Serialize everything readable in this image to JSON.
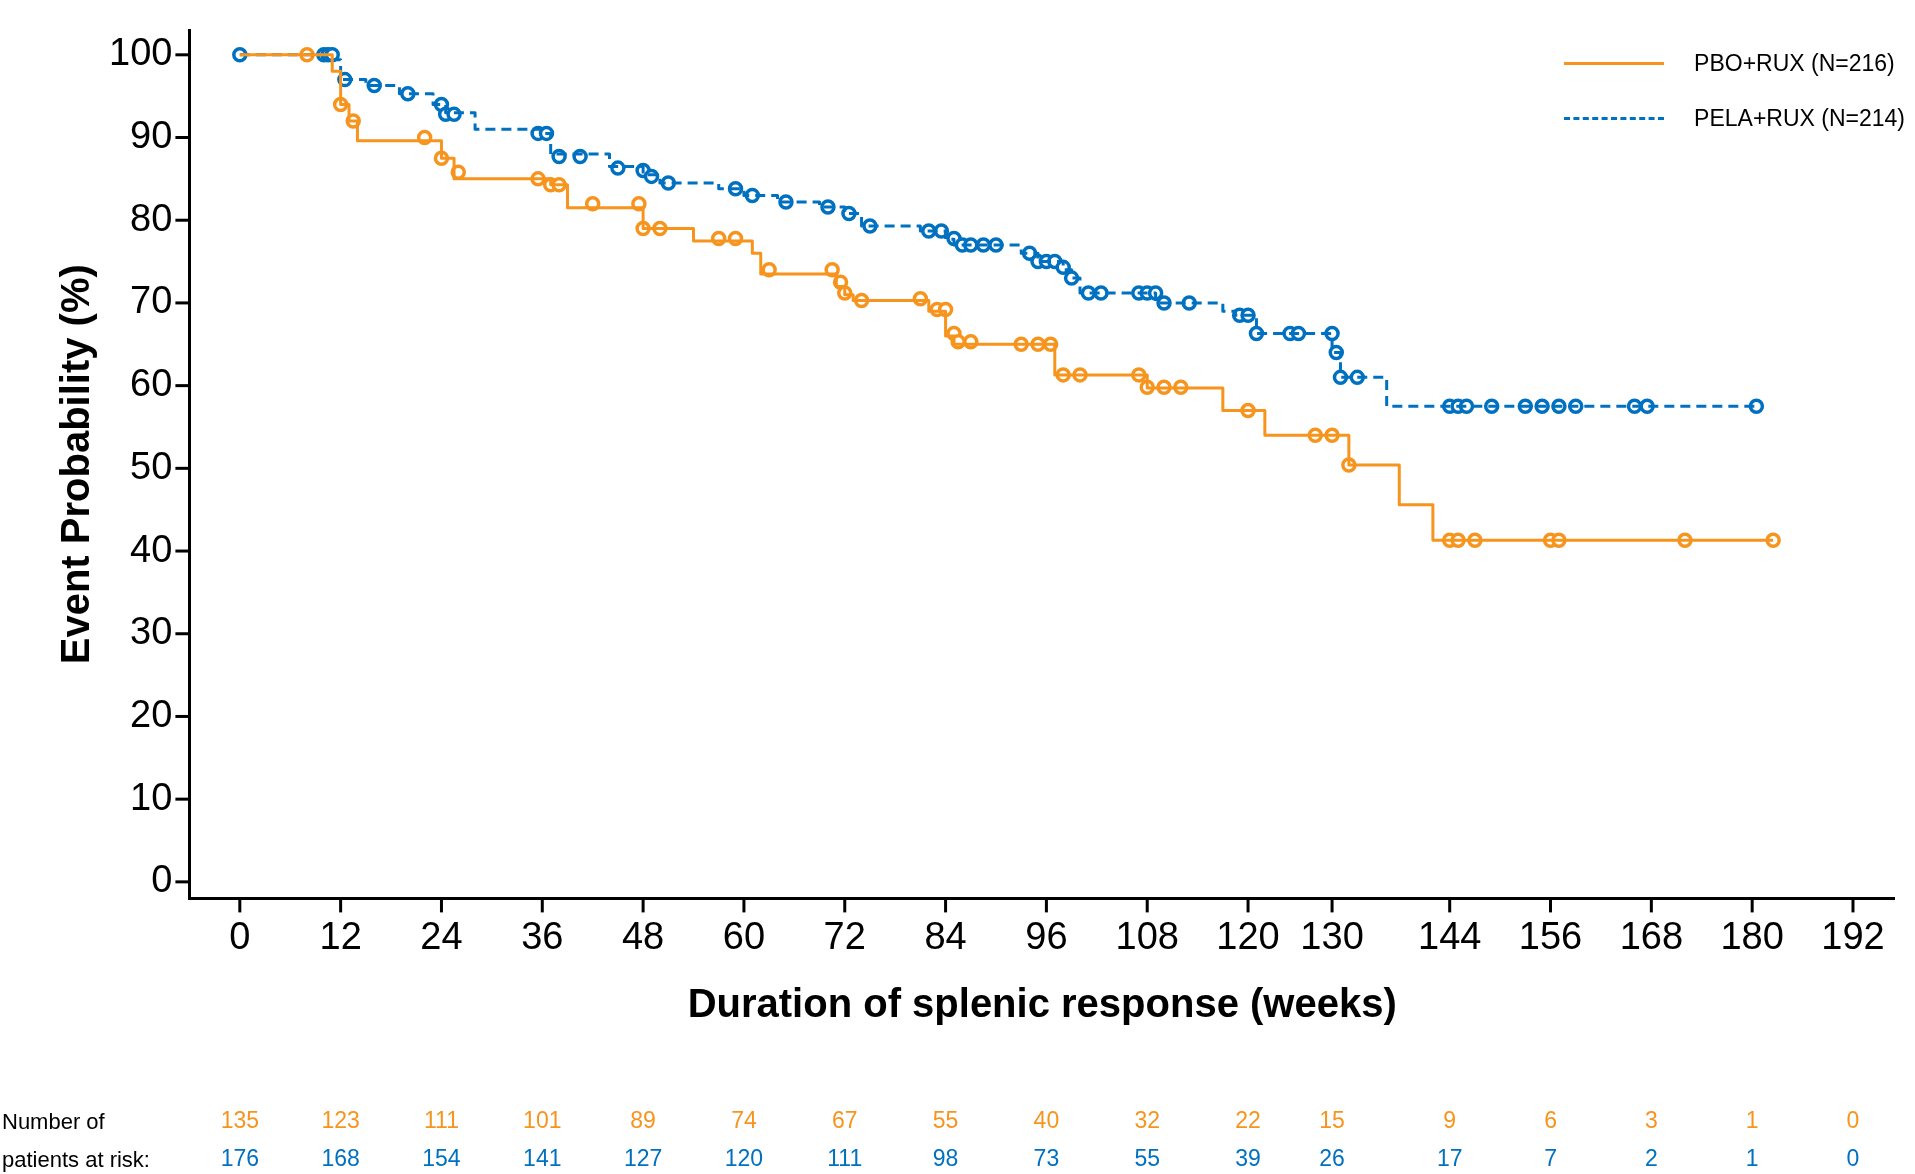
{
  "chart_data": {
    "type": "step",
    "xlabel": "Duration of splenic response (weeks)",
    "ylabel": "Event Probability (%)",
    "xlim": [
      -6,
      197
    ],
    "ylim": [
      -2,
      103
    ],
    "xticks": [
      0,
      12,
      24,
      36,
      48,
      60,
      72,
      84,
      96,
      108,
      120,
      130,
      144,
      156,
      168,
      180,
      192
    ],
    "yticks": [
      0,
      10,
      20,
      30,
      40,
      50,
      60,
      70,
      80,
      90,
      100
    ],
    "legend": "top right",
    "series": [
      {
        "name": "PBO+RUX (N=216)",
        "color": "#f7941d",
        "line_style": "solid",
        "marker": "none",
        "x": [
          0,
          11,
          12,
          13,
          14,
          24,
          25.5,
          37,
          39,
          48,
          54,
          61,
          62,
          71,
          72,
          73,
          82,
          84,
          85,
          97,
          108,
          117,
          122,
          132,
          138,
          142,
          182.5
        ],
        "values": [
          100,
          98,
          94,
          92,
          89.6,
          87.5,
          85,
          84.3,
          81.5,
          79,
          77.5,
          76,
          73.5,
          72,
          71,
          70.3,
          69,
          66,
          65,
          61.3,
          59.7,
          57,
          54,
          50.4,
          45.6,
          41.3,
          41.3
        ]
      },
      {
        "name": "PELA+RUX (N=214)",
        "color": "#0070c0",
        "line_style": "dashed",
        "marker": "none",
        "x": [
          0,
          10,
          12,
          15,
          19,
          23,
          24.5,
          28,
          36,
          37,
          44,
          48,
          50,
          57,
          60,
          64,
          69,
          72,
          74,
          81,
          84,
          85,
          93,
          95,
          98,
          99,
          100,
          109,
          117,
          118.5,
          121,
          130,
          131,
          136.5,
          180.5
        ],
        "values": [
          100,
          99.4,
          97,
          96.3,
          95.3,
          94,
          93,
          91,
          90.5,
          88,
          86.5,
          85.5,
          84.5,
          83.8,
          83,
          82.2,
          81.6,
          80.8,
          79.3,
          78.7,
          77.7,
          77,
          76,
          75,
          74,
          73,
          71.2,
          70,
          69,
          68.5,
          66.3,
          64,
          61,
          57.5,
          57.5
        ]
      },
      {
        "type": "scatter",
        "color": "#f7941d",
        "marker": "circle",
        "x": [
          8,
          12,
          13.5,
          22,
          24,
          26,
          35.5,
          37,
          38,
          42,
          47.5,
          48,
          50,
          57,
          59,
          63,
          70.5,
          71.5,
          72,
          74,
          81,
          83,
          84,
          85,
          85.5,
          87,
          93,
          95,
          96.5,
          98,
          100,
          107,
          108,
          110,
          112,
          120,
          128,
          130,
          132,
          144,
          145,
          147,
          156,
          157,
          172,
          182.5
        ],
        "values": [
          100,
          94,
          92,
          90,
          87.5,
          85.8,
          85,
          84.3,
          84.3,
          82,
          82,
          79,
          79,
          77.8,
          77.8,
          74,
          74,
          72.5,
          71.2,
          70.3,
          70.5,
          69.2,
          69.2,
          66.3,
          65.3,
          65.3,
          65,
          65,
          65,
          61.3,
          61.3,
          61.3,
          59.8,
          59.8,
          59.8,
          57,
          54,
          54,
          50.4,
          41.3,
          41.3,
          41.3,
          41.3,
          41.3,
          41.3,
          41.3
        ]
      },
      {
        "type": "scatter",
        "color": "#0070c0",
        "marker": "circle",
        "x": [
          0,
          10,
          10.5,
          11,
          12.5,
          16,
          20,
          24,
          24.5,
          25.5,
          35.5,
          36.5,
          38,
          40.5,
          45,
          48,
          49,
          51,
          59,
          61,
          65,
          70,
          72.5,
          75,
          82,
          83.5,
          85,
          86,
          87,
          88.5,
          90,
          94,
          95,
          96,
          97,
          98,
          99,
          101,
          102.5,
          107,
          108,
          109,
          110,
          113,
          119,
          120,
          121,
          125,
          126,
          130,
          130.5,
          131,
          133,
          144,
          145,
          146,
          149,
          153,
          155,
          157,
          159,
          166,
          167.5,
          180.5
        ],
        "values": [
          100,
          100,
          100,
          100,
          97,
          96.3,
          95.3,
          94,
          92.8,
          92.8,
          90.5,
          90.5,
          87.7,
          87.7,
          86.3,
          86,
          85.3,
          84.5,
          83.8,
          83,
          82.2,
          81.6,
          80.8,
          79.3,
          78.7,
          78.7,
          77.8,
          77,
          77,
          77,
          77,
          76,
          75,
          75,
          75,
          74.3,
          73,
          71.2,
          71.2,
          71.2,
          71.2,
          71.2,
          70,
          70,
          68.5,
          68.5,
          66.3,
          66.3,
          66.3,
          66.3,
          64,
          61,
          61,
          57.5,
          57.5,
          57.5,
          57.5,
          57.5,
          57.5,
          57.5,
          57.5,
          57.5,
          57.5,
          57.5
        ]
      }
    ],
    "annotations": [
      "Number of patients at risk:",
      "135 123 111 101 89 74 67 55 40 32 22 15 9 6 3 1 0",
      "176 168 154 141 127 120 111 98 73 55 39 26 17 7 2 1 0"
    ]
  }
}
